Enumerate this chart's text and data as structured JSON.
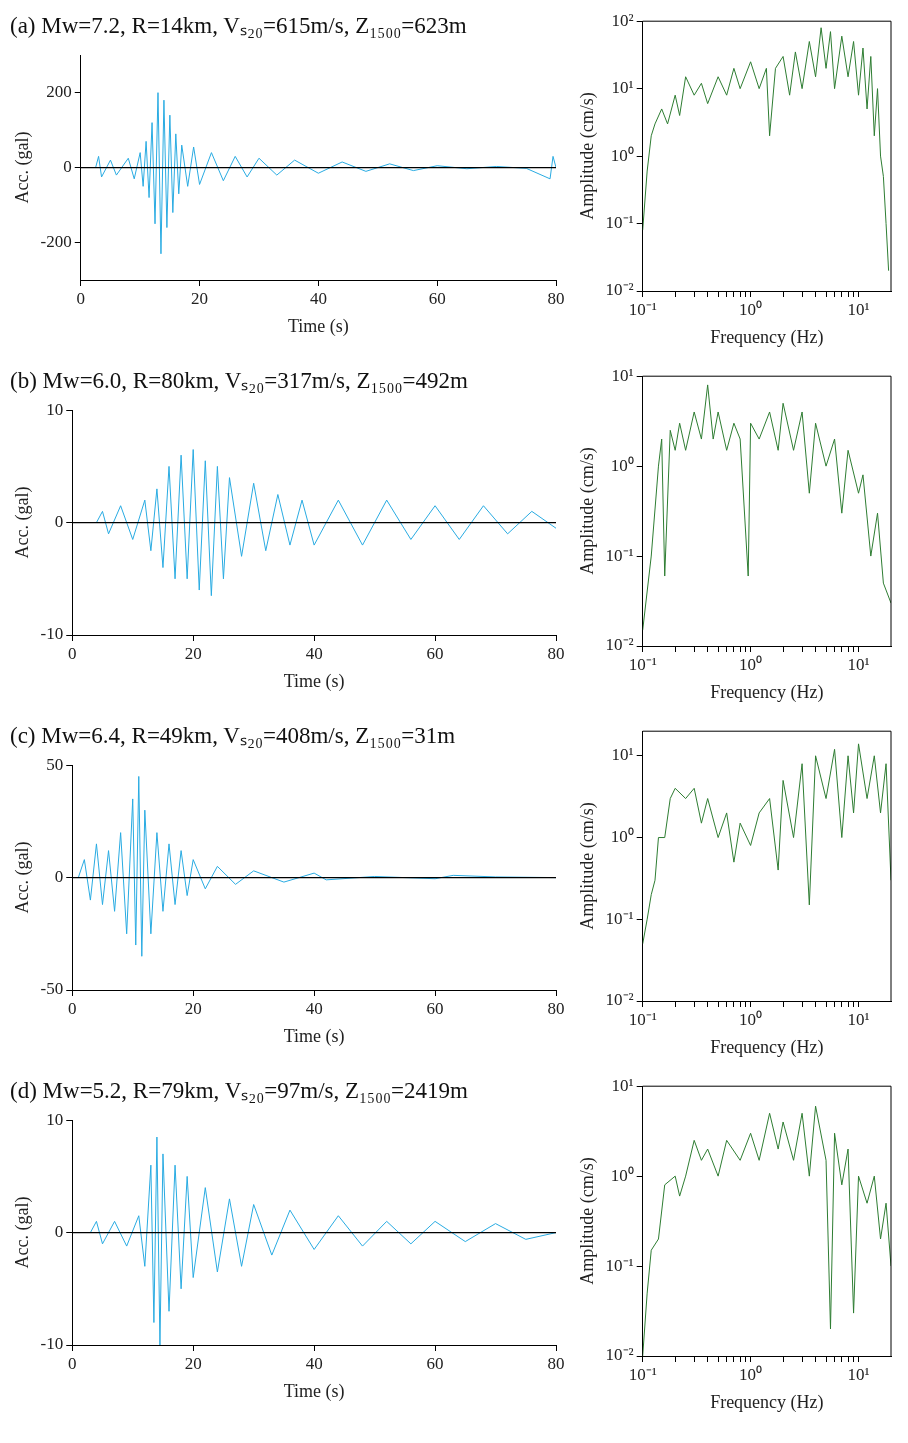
{
  "chart_data": [
    {
      "type": "line",
      "title": "(a) Mw=7.2, R=14km, Vₛ₂₀=615m/s, Z₁₅₀₀=623m",
      "xlabel": "Time (s)",
      "ylabel": "Acc. (gal)",
      "color": "#29abe2",
      "marker": "none",
      "grid": false,
      "xlim": [
        0,
        80
      ],
      "ylim": [
        -300,
        300
      ],
      "xticks": [
        0,
        20,
        40,
        60,
        80
      ],
      "yticks": [
        -200,
        0,
        200
      ],
      "ref_lines": [
        {
          "axis": "y",
          "value": 0,
          "color": "#000000"
        }
      ],
      "x": [
        2.5,
        3,
        3.5,
        5,
        6,
        8,
        9,
        10,
        10.5,
        11,
        11.5,
        12,
        12.5,
        13,
        13.5,
        14,
        14.5,
        15,
        15.5,
        16,
        16.5,
        17,
        18,
        19,
        20,
        22,
        24,
        26,
        28,
        30,
        33,
        36,
        40,
        44,
        48,
        52,
        56,
        60,
        65,
        70,
        75,
        79,
        79.5,
        80
      ],
      "values": [
        0,
        30,
        -25,
        20,
        -20,
        25,
        -30,
        40,
        -50,
        70,
        -80,
        120,
        -150,
        200,
        -230,
        180,
        -160,
        140,
        -120,
        90,
        -70,
        60,
        -50,
        55,
        -45,
        40,
        -35,
        30,
        -25,
        25,
        -20,
        20,
        -15,
        15,
        -10,
        10,
        -8,
        5,
        -3,
        3,
        -2,
        -30,
        30,
        0
      ]
    },
    {
      "type": "line",
      "xlabel": "Frequency (Hz)",
      "ylabel": "Amplitude (cm/s)",
      "color": "#2e7d32",
      "marker": "none",
      "grid": false,
      "log": "xy",
      "xlim": [
        0.1,
        20
      ],
      "ylim": [
        0.01,
        100
      ],
      "xticks": [
        {
          "value": 0.1,
          "label": "10⁻¹"
        },
        {
          "value": 0.2,
          "label": null
        },
        {
          "value": 0.3,
          "label": null
        },
        {
          "value": 0.4,
          "label": null
        },
        {
          "value": 0.5,
          "label": null
        },
        {
          "value": 0.6,
          "label": null
        },
        {
          "value": 0.7,
          "label": null
        },
        {
          "value": 0.8,
          "label": null
        },
        {
          "value": 0.9,
          "label": null
        },
        {
          "value": 1,
          "label": "10⁰"
        },
        {
          "value": 2,
          "label": null
        },
        {
          "value": 3,
          "label": null
        },
        {
          "value": 4,
          "label": null
        },
        {
          "value": 5,
          "label": null
        },
        {
          "value": 6,
          "label": null
        },
        {
          "value": 7,
          "label": null
        },
        {
          "value": 8,
          "label": null
        },
        {
          "value": 9,
          "label": null
        },
        {
          "value": 10,
          "label": "10¹"
        }
      ],
      "yticks": [
        {
          "value": 0.01,
          "label": "10⁻²"
        },
        {
          "value": 0.1,
          "label": "10⁻¹"
        },
        {
          "value": 1,
          "label": "10⁰"
        },
        {
          "value": 10,
          "label": "10¹"
        },
        {
          "value": 100,
          "label": "10²"
        }
      ],
      "x": [
        0.1,
        0.11,
        0.12,
        0.13,
        0.15,
        0.17,
        0.2,
        0.22,
        0.25,
        0.3,
        0.35,
        0.4,
        0.5,
        0.6,
        0.7,
        0.8,
        1,
        1.2,
        1.4,
        1.5,
        1.7,
        2,
        2.3,
        2.6,
        3,
        3.5,
        4,
        4.5,
        5,
        5.5,
        6,
        7,
        8,
        9,
        10,
        11,
        12,
        13,
        14,
        15,
        16,
        17,
        18,
        19
      ],
      "values": [
        0.08,
        0.6,
        2,
        3,
        5,
        3,
        8,
        4,
        15,
        8,
        12,
        6,
        15,
        8,
        20,
        10,
        25,
        10,
        20,
        2,
        20,
        30,
        8,
        35,
        10,
        50,
        15,
        80,
        20,
        70,
        10,
        60,
        15,
        50,
        8,
        40,
        5,
        30,
        2,
        10,
        1,
        0.5,
        0.1,
        0.02
      ]
    },
    {
      "type": "line",
      "title": "(b) Mw=6.0, R=80km, Vₛ₂₀=317m/s, Z₁₅₀₀=492m",
      "xlabel": "Time (s)",
      "ylabel": "Acc. (gal)",
      "color": "#29abe2",
      "marker": "none",
      "grid": false,
      "xlim": [
        0,
        80
      ],
      "ylim": [
        -10,
        10
      ],
      "xticks": [
        0,
        20,
        40,
        60,
        80
      ],
      "yticks": [
        -10,
        0,
        10
      ],
      "ref_lines": [
        {
          "axis": "y",
          "value": 0,
          "color": "#000000"
        }
      ],
      "x": [
        4,
        5,
        6,
        8,
        10,
        12,
        13,
        14,
        15,
        16,
        17,
        18,
        19,
        20,
        21,
        22,
        23,
        24,
        25,
        26,
        28,
        30,
        32,
        34,
        36,
        38,
        40,
        44,
        48,
        52,
        56,
        60,
        64,
        68,
        72,
        76,
        80
      ],
      "values": [
        0,
        1,
        -1,
        1.5,
        -1.5,
        2,
        -2.5,
        3,
        -4,
        5,
        -5,
        6,
        -5,
        6.5,
        -6,
        5.5,
        -6.5,
        5,
        -5,
        4,
        -3,
        3.5,
        -2.5,
        2.5,
        -2,
        2,
        -2,
        2,
        -2,
        2,
        -1.5,
        1.5,
        -1.5,
        1.5,
        -1,
        1,
        -0.5
      ]
    },
    {
      "type": "line",
      "xlabel": "Frequency (Hz)",
      "ylabel": "Amplitude (cm/s)",
      "color": "#2e7d32",
      "marker": "none",
      "grid": false,
      "log": "xy",
      "xlim": [
        0.1,
        20
      ],
      "ylim": [
        0.01,
        10
      ],
      "xticks": [
        {
          "value": 0.1,
          "label": "10⁻¹"
        },
        {
          "value": 0.2,
          "label": null
        },
        {
          "value": 0.3,
          "label": null
        },
        {
          "value": 0.4,
          "label": null
        },
        {
          "value": 0.5,
          "label": null
        },
        {
          "value": 0.6,
          "label": null
        },
        {
          "value": 0.7,
          "label": null
        },
        {
          "value": 0.8,
          "label": null
        },
        {
          "value": 0.9,
          "label": null
        },
        {
          "value": 1,
          "label": "10⁰"
        },
        {
          "value": 2,
          "label": null
        },
        {
          "value": 3,
          "label": null
        },
        {
          "value": 4,
          "label": null
        },
        {
          "value": 5,
          "label": null
        },
        {
          "value": 6,
          "label": null
        },
        {
          "value": 7,
          "label": null
        },
        {
          "value": 8,
          "label": null
        },
        {
          "value": 9,
          "label": null
        },
        {
          "value": 10,
          "label": "10¹"
        }
      ],
      "yticks": [
        {
          "value": 0.01,
          "label": "10⁻²"
        },
        {
          "value": 0.1,
          "label": "10⁻¹"
        },
        {
          "value": 1,
          "label": "10⁰"
        },
        {
          "value": 10,
          "label": "10¹"
        }
      ],
      "x": [
        0.1,
        0.12,
        0.14,
        0.15,
        0.16,
        0.18,
        0.2,
        0.22,
        0.25,
        0.3,
        0.35,
        0.4,
        0.45,
        0.5,
        0.6,
        0.7,
        0.8,
        0.95,
        1,
        1.2,
        1.5,
        1.8,
        2,
        2.5,
        3,
        3.5,
        4,
        5,
        6,
        7,
        8,
        10,
        11,
        13,
        15,
        17,
        20
      ],
      "values": [
        0.015,
        0.1,
        1,
        2,
        0.06,
        2.5,
        1.5,
        3,
        1.5,
        4,
        2,
        8,
        2,
        4,
        1.5,
        3,
        2,
        0.06,
        3,
        2,
        4,
        1.5,
        5,
        1.5,
        4,
        0.5,
        3,
        1,
        2,
        0.3,
        1.5,
        0.5,
        0.8,
        0.1,
        0.3,
        0.05,
        0.03
      ]
    },
    {
      "type": "line",
      "title": "(c) Mw=6.4, R=49km, Vₛ₂₀=408m/s, Z₁₅₀₀=31m",
      "xlabel": "Time (s)",
      "ylabel": "Acc. (gal)",
      "color": "#29abe2",
      "marker": "none",
      "grid": false,
      "xlim": [
        0,
        80
      ],
      "ylim": [
        -50,
        50
      ],
      "xticks": [
        0,
        20,
        40,
        60,
        80
      ],
      "yticks": [
        -50,
        0,
        50
      ],
      "ref_lines": [
        {
          "axis": "y",
          "value": 0,
          "color": "#000000"
        }
      ],
      "x": [
        1,
        2,
        3,
        4,
        5,
        6,
        7,
        8,
        9,
        10,
        10.5,
        11,
        11.5,
        12,
        13,
        14,
        15,
        16,
        17,
        18,
        19,
        20,
        22,
        24,
        27,
        30,
        35,
        40,
        42,
        50,
        60,
        63,
        70,
        80
      ],
      "values": [
        0,
        8,
        -10,
        15,
        -12,
        12,
        -15,
        20,
        -25,
        35,
        -30,
        45,
        -35,
        30,
        -25,
        20,
        -15,
        15,
        -12,
        12,
        -8,
        8,
        -5,
        5,
        -3,
        3,
        -2,
        2,
        -1,
        0.5,
        -0.5,
        1,
        0.3,
        0
      ]
    },
    {
      "type": "line",
      "xlabel": "Frequency (Hz)",
      "ylabel": "Amplitude (cm/s)",
      "color": "#2e7d32",
      "marker": "none",
      "grid": false,
      "log": "xy",
      "xlim": [
        0.1,
        20
      ],
      "ylim": [
        0.01,
        20
      ],
      "xticks": [
        {
          "value": 0.1,
          "label": "10⁻¹"
        },
        {
          "value": 0.2,
          "label": null
        },
        {
          "value": 0.3,
          "label": null
        },
        {
          "value": 0.4,
          "label": null
        },
        {
          "value": 0.5,
          "label": null
        },
        {
          "value": 0.6,
          "label": null
        },
        {
          "value": 0.7,
          "label": null
        },
        {
          "value": 0.8,
          "label": null
        },
        {
          "value": 0.9,
          "label": null
        },
        {
          "value": 1,
          "label": "10⁰"
        },
        {
          "value": 2,
          "label": null
        },
        {
          "value": 3,
          "label": null
        },
        {
          "value": 4,
          "label": null
        },
        {
          "value": 5,
          "label": null
        },
        {
          "value": 6,
          "label": null
        },
        {
          "value": 7,
          "label": null
        },
        {
          "value": 8,
          "label": null
        },
        {
          "value": 9,
          "label": null
        },
        {
          "value": 10,
          "label": "10¹"
        }
      ],
      "yticks": [
        {
          "value": 0.01,
          "label": "10⁻²"
        },
        {
          "value": 0.1,
          "label": "10⁻¹"
        },
        {
          "value": 1,
          "label": "10⁰"
        },
        {
          "value": 10,
          "label": "10¹"
        }
      ],
      "x": [
        0.1,
        0.11,
        0.12,
        0.13,
        0.14,
        0.16,
        0.18,
        0.2,
        0.25,
        0.3,
        0.35,
        0.4,
        0.5,
        0.6,
        0.7,
        0.8,
        1,
        1.2,
        1.5,
        1.8,
        2,
        2.5,
        3,
        3.5,
        4,
        5,
        6,
        7,
        8,
        9,
        10,
        12,
        14,
        16,
        18,
        20
      ],
      "values": [
        0.05,
        0.1,
        0.2,
        0.3,
        1,
        1,
        3,
        4,
        3,
        4,
        1.5,
        3,
        1,
        2,
        0.5,
        1.5,
        0.8,
        2,
        3,
        0.4,
        5,
        1,
        8,
        0.15,
        10,
        3,
        12,
        1,
        10,
        2,
        14,
        3,
        10,
        2,
        8,
        0.3
      ]
    },
    {
      "type": "line",
      "title": "(d) Mw=5.2, R=79km, Vₛ₂₀=97m/s, Z₁₅₀₀=2419m",
      "xlabel": "Time (s)",
      "ylabel": "Acc. (gal)",
      "color": "#29abe2",
      "marker": "none",
      "grid": false,
      "xlim": [
        0,
        80
      ],
      "ylim": [
        -10,
        10
      ],
      "xticks": [
        0,
        20,
        40,
        60,
        80
      ],
      "yticks": [
        -10,
        0,
        10
      ],
      "ref_lines": [
        {
          "axis": "y",
          "value": 0,
          "color": "#000000"
        }
      ],
      "x": [
        3,
        4,
        5,
        7,
        9,
        11,
        12,
        13,
        13.5,
        14,
        14.5,
        15,
        16,
        17,
        18,
        19,
        20,
        22,
        24,
        26,
        28,
        30,
        33,
        36,
        40,
        44,
        48,
        52,
        56,
        60,
        65,
        70,
        75,
        80
      ],
      "values": [
        0,
        1,
        -1,
        1,
        -1.2,
        1.5,
        -3,
        6,
        -8,
        8.5,
        -10,
        7,
        -7,
        6,
        -5,
        5,
        -4,
        4,
        -3.5,
        3,
        -3,
        2.5,
        -2,
        2,
        -1.5,
        1.5,
        -1.2,
        1,
        -1,
        1,
        -0.8,
        0.8,
        -0.6,
        0
      ]
    },
    {
      "type": "line",
      "xlabel": "Frequency (Hz)",
      "ylabel": "Amplitude (cm/s)",
      "color": "#2e7d32",
      "marker": "none",
      "grid": false,
      "log": "xy",
      "xlim": [
        0.1,
        20
      ],
      "ylim": [
        0.01,
        10
      ],
      "xticks": [
        {
          "value": 0.1,
          "label": "10⁻¹"
        },
        {
          "value": 0.2,
          "label": null
        },
        {
          "value": 0.3,
          "label": null
        },
        {
          "value": 0.4,
          "label": null
        },
        {
          "value": 0.5,
          "label": null
        },
        {
          "value": 0.6,
          "label": null
        },
        {
          "value": 0.7,
          "label": null
        },
        {
          "value": 0.8,
          "label": null
        },
        {
          "value": 0.9,
          "label": null
        },
        {
          "value": 1,
          "label": "10⁰"
        },
        {
          "value": 2,
          "label": null
        },
        {
          "value": 3,
          "label": null
        },
        {
          "value": 4,
          "label": null
        },
        {
          "value": 5,
          "label": null
        },
        {
          "value": 6,
          "label": null
        },
        {
          "value": 7,
          "label": null
        },
        {
          "value": 8,
          "label": null
        },
        {
          "value": 9,
          "label": null
        },
        {
          "value": 10,
          "label": "10¹"
        }
      ],
      "yticks": [
        {
          "value": 0.01,
          "label": "10⁻²"
        },
        {
          "value": 0.1,
          "label": "10⁻¹"
        },
        {
          "value": 1,
          "label": "10⁰"
        },
        {
          "value": 10,
          "label": "10¹"
        }
      ],
      "x": [
        0.1,
        0.11,
        0.12,
        0.14,
        0.16,
        0.2,
        0.22,
        0.25,
        0.3,
        0.35,
        0.4,
        0.5,
        0.6,
        0.8,
        1,
        1.2,
        1.5,
        1.8,
        2,
        2.5,
        3,
        3.5,
        4,
        5,
        5.5,
        6,
        7,
        8,
        9,
        10,
        12,
        14,
        16,
        18,
        20
      ],
      "values": [
        0.01,
        0.05,
        0.15,
        0.2,
        0.8,
        1,
        0.6,
        1,
        2.5,
        1.5,
        2,
        1,
        2.5,
        1.5,
        3,
        1.5,
        5,
        2,
        4,
        1.5,
        5,
        1,
        6,
        1.5,
        0.02,
        3,
        0.8,
        2,
        0.03,
        1,
        0.5,
        1,
        0.2,
        0.5,
        0.1
      ]
    }
  ]
}
